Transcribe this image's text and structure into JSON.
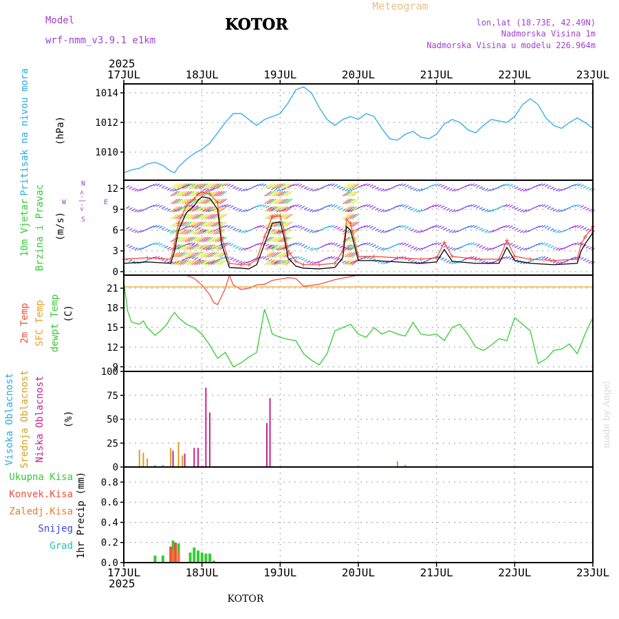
{
  "header": {
    "model_label": "Model",
    "model_name": "wrf-nmm_v3.9.1 e1km",
    "station": "KOTOR",
    "product": "Meteogram",
    "coords": "lon,lat (18.73E, 42.49N)",
    "elevation": "Nadmorska Visina 1m",
    "model_elevation": "Nadmorska Visina u modelu 226.964m",
    "year_top": "2025",
    "year_bottom": "2025",
    "footer_station": "KOTOR",
    "credit": "made by Angel"
  },
  "colors": {
    "pressure": "#29a9e8",
    "temp2m": "#f0503c",
    "sfc_temp": "#e8a020",
    "dewpt": "#33cc33",
    "wind_speed": "#000000",
    "wind_gust": "#f0503c",
    "high_cloud": "#29a9e8",
    "mid_cloud": "#d4a020",
    "low_cloud": "#cc1f8c",
    "total_precip": "#33cc33",
    "conv_precip": "#f0503c",
    "frz_precip": "#f07828",
    "snow": "#4040e0",
    "hail": "#20c0b0",
    "labels_purple": "#a040d0",
    "labels_orange": "#e8c080"
  },
  "chart_data": {
    "type": "line",
    "x_ticks": [
      "17JUL",
      "18JUL",
      "19JUL",
      "20JUL",
      "21JUL",
      "22JUL",
      "23JUL"
    ],
    "x_range_days": [
      17,
      23
    ],
    "panels": [
      {
        "id": "pressure",
        "ylabel_1": "Pritisak na nivou mora",
        "unit": "(hPa)",
        "y_ticks": [
          1010,
          1012,
          1014
        ],
        "ylim": [
          1008.1,
          1014.6
        ],
        "series": [
          {
            "legend": "Pritisak na nivou mora",
            "x": [
              17.0,
              17.1,
              17.2,
              17.3,
              17.4,
              17.5,
              17.6,
              17.65,
              17.7,
              17.8,
              17.9,
              18.0,
              18.1,
              18.2,
              18.3,
              18.4,
              18.5,
              18.6,
              18.7,
              18.8,
              18.9,
              19.0,
              19.1,
              19.2,
              19.3,
              19.4,
              19.5,
              19.6,
              19.7,
              19.8,
              19.9,
              20.0,
              20.1,
              20.2,
              20.3,
              20.4,
              20.5,
              20.6,
              20.7,
              20.8,
              20.9,
              21.0,
              21.1,
              21.2,
              21.3,
              21.4,
              21.5,
              21.6,
              21.7,
              21.8,
              21.9,
              22.0,
              22.1,
              22.2,
              22.3,
              22.4,
              22.5,
              22.6,
              22.7,
              22.8,
              22.9,
              23.0
            ],
            "y": [
              1008.6,
              1008.8,
              1008.9,
              1009.2,
              1009.3,
              1009.1,
              1008.7,
              1008.6,
              1009.0,
              1009.5,
              1009.9,
              1010.2,
              1010.6,
              1011.3,
              1012.0,
              1012.6,
              1012.6,
              1012.2,
              1011.8,
              1012.2,
              1012.4,
              1012.6,
              1013.3,
              1014.2,
              1014.4,
              1014.0,
              1013.0,
              1012.2,
              1011.8,
              1012.2,
              1012.4,
              1012.2,
              1012.6,
              1012.4,
              1011.6,
              1010.9,
              1010.8,
              1011.2,
              1011.4,
              1011.0,
              1010.9,
              1011.2,
              1011.9,
              1012.2,
              1012.0,
              1011.5,
              1011.3,
              1011.8,
              1012.2,
              1012.1,
              1012.0,
              1012.4,
              1013.2,
              1013.6,
              1013.2,
              1012.3,
              1011.8,
              1011.6,
              1012.0,
              1012.3,
              1012.0,
              1011.6
            ]
          }
        ]
      },
      {
        "id": "wind",
        "ylabel_1": "10m Vjetar",
        "ylabel_2": "Brzina i Pravac",
        "unit": "(m/s)",
        "compass": "N",
        "compass_labels": [
          "W",
          "E",
          "S",
          "N"
        ],
        "y_ticks": [
          0,
          3,
          6,
          9,
          12
        ],
        "ylim": [
          -0.5,
          13.2
        ],
        "series": [
          {
            "legend": "wind speed",
            "x": [
              17.0,
              17.3,
              17.6,
              17.65,
              17.7,
              17.8,
              17.9,
              17.95,
              18.0,
              18.1,
              18.2,
              18.25,
              18.35,
              18.5,
              18.6,
              18.7,
              18.8,
              18.9,
              19.0,
              19.05,
              19.1,
              19.2,
              19.3,
              19.5,
              19.7,
              19.8,
              19.85,
              19.9,
              20.0,
              20.2,
              20.5,
              20.8,
              21.0,
              21.1,
              21.2,
              21.5,
              21.8,
              21.9,
              22.0,
              22.2,
              22.5,
              22.8,
              22.85,
              22.9,
              23.0
            ],
            "y": [
              1.2,
              1.4,
              1.2,
              3.0,
              6.0,
              8.5,
              9.5,
              10.3,
              10.8,
              10.6,
              9.0,
              4.0,
              0.6,
              0.5,
              0.4,
              1.0,
              4.0,
              7.0,
              7.2,
              5.0,
              2.0,
              0.8,
              0.5,
              0.4,
              0.6,
              2.0,
              6.5,
              6.0,
              1.6,
              1.6,
              1.4,
              1.2,
              1.4,
              3.2,
              1.5,
              1.2,
              1.2,
              3.5,
              1.6,
              1.2,
              1.0,
              1.2,
              3.0,
              4.0,
              5.6
            ]
          },
          {
            "legend": "wind gust",
            "x": [
              17.0,
              17.3,
              17.6,
              17.65,
              17.7,
              17.8,
              17.9,
              17.95,
              18.0,
              18.1,
              18.2,
              18.25,
              18.35,
              18.5,
              18.6,
              18.7,
              18.8,
              18.9,
              19.0,
              19.05,
              19.1,
              19.2,
              19.3,
              19.5,
              19.7,
              19.8,
              19.85,
              19.9,
              20.0,
              20.2,
              20.5,
              20.8,
              21.0,
              21.1,
              21.2,
              21.5,
              21.8,
              21.9,
              22.0,
              22.2,
              22.5,
              22.8,
              22.85,
              22.9,
              23.0
            ],
            "y": [
              1.8,
              2.0,
              1.8,
              4.0,
              7.0,
              9.5,
              10.5,
              11.2,
              11.5,
              11.2,
              10.0,
              5.0,
              1.2,
              1.0,
              1.0,
              1.8,
              5.0,
              8.0,
              8.0,
              6.0,
              3.0,
              1.5,
              1.0,
              1.0,
              1.2,
              3.0,
              7.5,
              7.0,
              2.2,
              2.2,
              2.0,
              1.8,
              2.0,
              4.2,
              2.2,
              1.8,
              1.8,
              4.5,
              2.2,
              1.8,
              1.6,
              1.8,
              4.0,
              5.0,
              6.5
            ]
          }
        ]
      },
      {
        "id": "temperature",
        "ylabel_1": "2m Temp",
        "ylabel_2": "SFC Temp",
        "ylabel_3": "dewpt Temp",
        "unit": "(C)",
        "y_ticks": [
          9,
          12,
          15,
          18,
          21
        ],
        "ylim": [
          8.3,
          23.0
        ],
        "series": [
          {
            "legend": "2m Temp",
            "x": [
              17.0,
              17.5,
              17.8,
              17.9,
              18.0,
              18.1,
              18.15,
              18.2,
              18.3,
              18.35,
              18.4,
              18.5,
              18.6,
              18.7,
              18.8,
              18.9,
              19.0,
              19.1,
              19.2,
              19.3,
              19.5,
              19.7,
              20.0,
              21.0,
              22.0,
              23.0
            ],
            "y": [
              23.0,
              23.0,
              23.0,
              22.5,
              21.5,
              20.0,
              18.8,
              18.5,
              21.0,
              23.0,
              21.5,
              20.8,
              21.0,
              21.5,
              21.6,
              22.2,
              22.4,
              22.6,
              22.5,
              21.3,
              21.6,
              22.3,
              23.0,
              23.0,
              23.0,
              23.0
            ]
          },
          {
            "legend": "SFC Temp",
            "x": [
              17.0,
              23.0
            ],
            "y": [
              21.2,
              21.2
            ]
          },
          {
            "legend": "dewpt Temp",
            "x": [
              17.0,
              17.05,
              17.1,
              17.2,
              17.25,
              17.3,
              17.4,
              17.5,
              17.55,
              17.6,
              17.65,
              17.7,
              17.8,
              17.9,
              18.0,
              18.1,
              18.2,
              18.3,
              18.4,
              18.5,
              18.6,
              18.7,
              18.8,
              18.85,
              18.9,
              19.0,
              19.1,
              19.2,
              19.3,
              19.4,
              19.5,
              19.6,
              19.7,
              19.8,
              19.9,
              20.0,
              20.1,
              20.2,
              20.3,
              20.4,
              20.5,
              20.6,
              20.7,
              20.8,
              20.9,
              21.0,
              21.1,
              21.2,
              21.3,
              21.4,
              21.5,
              21.6,
              21.7,
              21.8,
              21.9,
              22.0,
              22.1,
              22.2,
              22.3,
              22.4,
              22.5,
              22.6,
              22.7,
              22.8,
              22.9,
              23.0
            ],
            "y": [
              22.0,
              17.5,
              15.8,
              15.5,
              16.0,
              15.0,
              13.8,
              14.8,
              15.5,
              16.5,
              17.3,
              16.5,
              15.5,
              15.0,
              14.0,
              12.3,
              10.3,
              11.2,
              9.0,
              9.6,
              10.5,
              11.2,
              17.8,
              16.0,
              14.0,
              13.5,
              13.2,
              13.0,
              11.0,
              10.0,
              9.3,
              11.0,
              14.5,
              15.0,
              15.5,
              14.0,
              13.5,
              15.0,
              14.0,
              14.5,
              14.0,
              13.7,
              15.8,
              14.0,
              13.8,
              14.0,
              13.0,
              15.0,
              15.5,
              14.0,
              12.0,
              11.5,
              12.3,
              13.3,
              13.0,
              16.5,
              15.5,
              14.5,
              9.5,
              10.2,
              11.5,
              11.7,
              12.5,
              11.0,
              14.0,
              16.5
            ]
          }
        ]
      },
      {
        "id": "clouds",
        "ylabel_1": "Visoka Oblacnost",
        "ylabel_2": "Srednja Oblacnost",
        "ylabel_3": "Niska Oblacnost",
        "unit": "(%)",
        "y_ticks": [
          0,
          25,
          50,
          75,
          100
        ],
        "ylim": [
          0,
          100
        ],
        "bars": [
          {
            "legend": "Srednja Oblacnost",
            "x": [
              17.2,
              17.25,
              17.3,
              17.6,
              17.7,
              17.75,
              20.5
            ],
            "y": [
              18,
              15,
              9,
              20,
              26,
              12,
              6
            ]
          },
          {
            "legend": "Niska Oblacnost",
            "x": [
              17.63,
              17.78,
              17.9,
              17.95,
              18.05,
              18.1,
              18.83,
              18.87
            ],
            "y": [
              17,
              14,
              20,
              20,
              83,
              57,
              46,
              72
            ]
          },
          {
            "legend": "Visoka Oblacnost",
            "x": [
              17.4,
              17.5,
              20.6
            ],
            "y": [
              2,
              2,
              2
            ]
          }
        ]
      },
      {
        "id": "precip",
        "ylabel_1": "Ukupna Kisa",
        "ylabel_2": "Konvek.Kisa",
        "ylabel_3": "Zaledj.Kisa",
        "ylabel_4": "Snijeg",
        "ylabel_5": "Grad",
        "unit": "1hr Precip (mm)",
        "y_ticks": [
          0.0,
          0.2,
          0.4,
          0.6,
          0.8
        ],
        "ylim": [
          0,
          0.95
        ],
        "bars": [
          {
            "legend": "Ukupna Kisa",
            "x": [
              17.4,
              17.5,
              17.63,
              17.7,
              17.85,
              17.9,
              17.95,
              18.0,
              18.05,
              18.1,
              18.15
            ],
            "y": [
              0.07,
              0.07,
              0.22,
              0.19,
              0.1,
              0.15,
              0.12,
              0.1,
              0.09,
              0.09,
              0.02
            ]
          },
          {
            "legend": "Konvek.Kisa",
            "x": [
              17.6,
              17.66
            ],
            "y": [
              0.16,
              0.2
            ]
          },
          {
            "legend": "Zaledj.Kisa",
            "x": [
              17.63,
              17.7
            ],
            "y": [
              0.12,
              0.1
            ]
          }
        ]
      }
    ]
  }
}
